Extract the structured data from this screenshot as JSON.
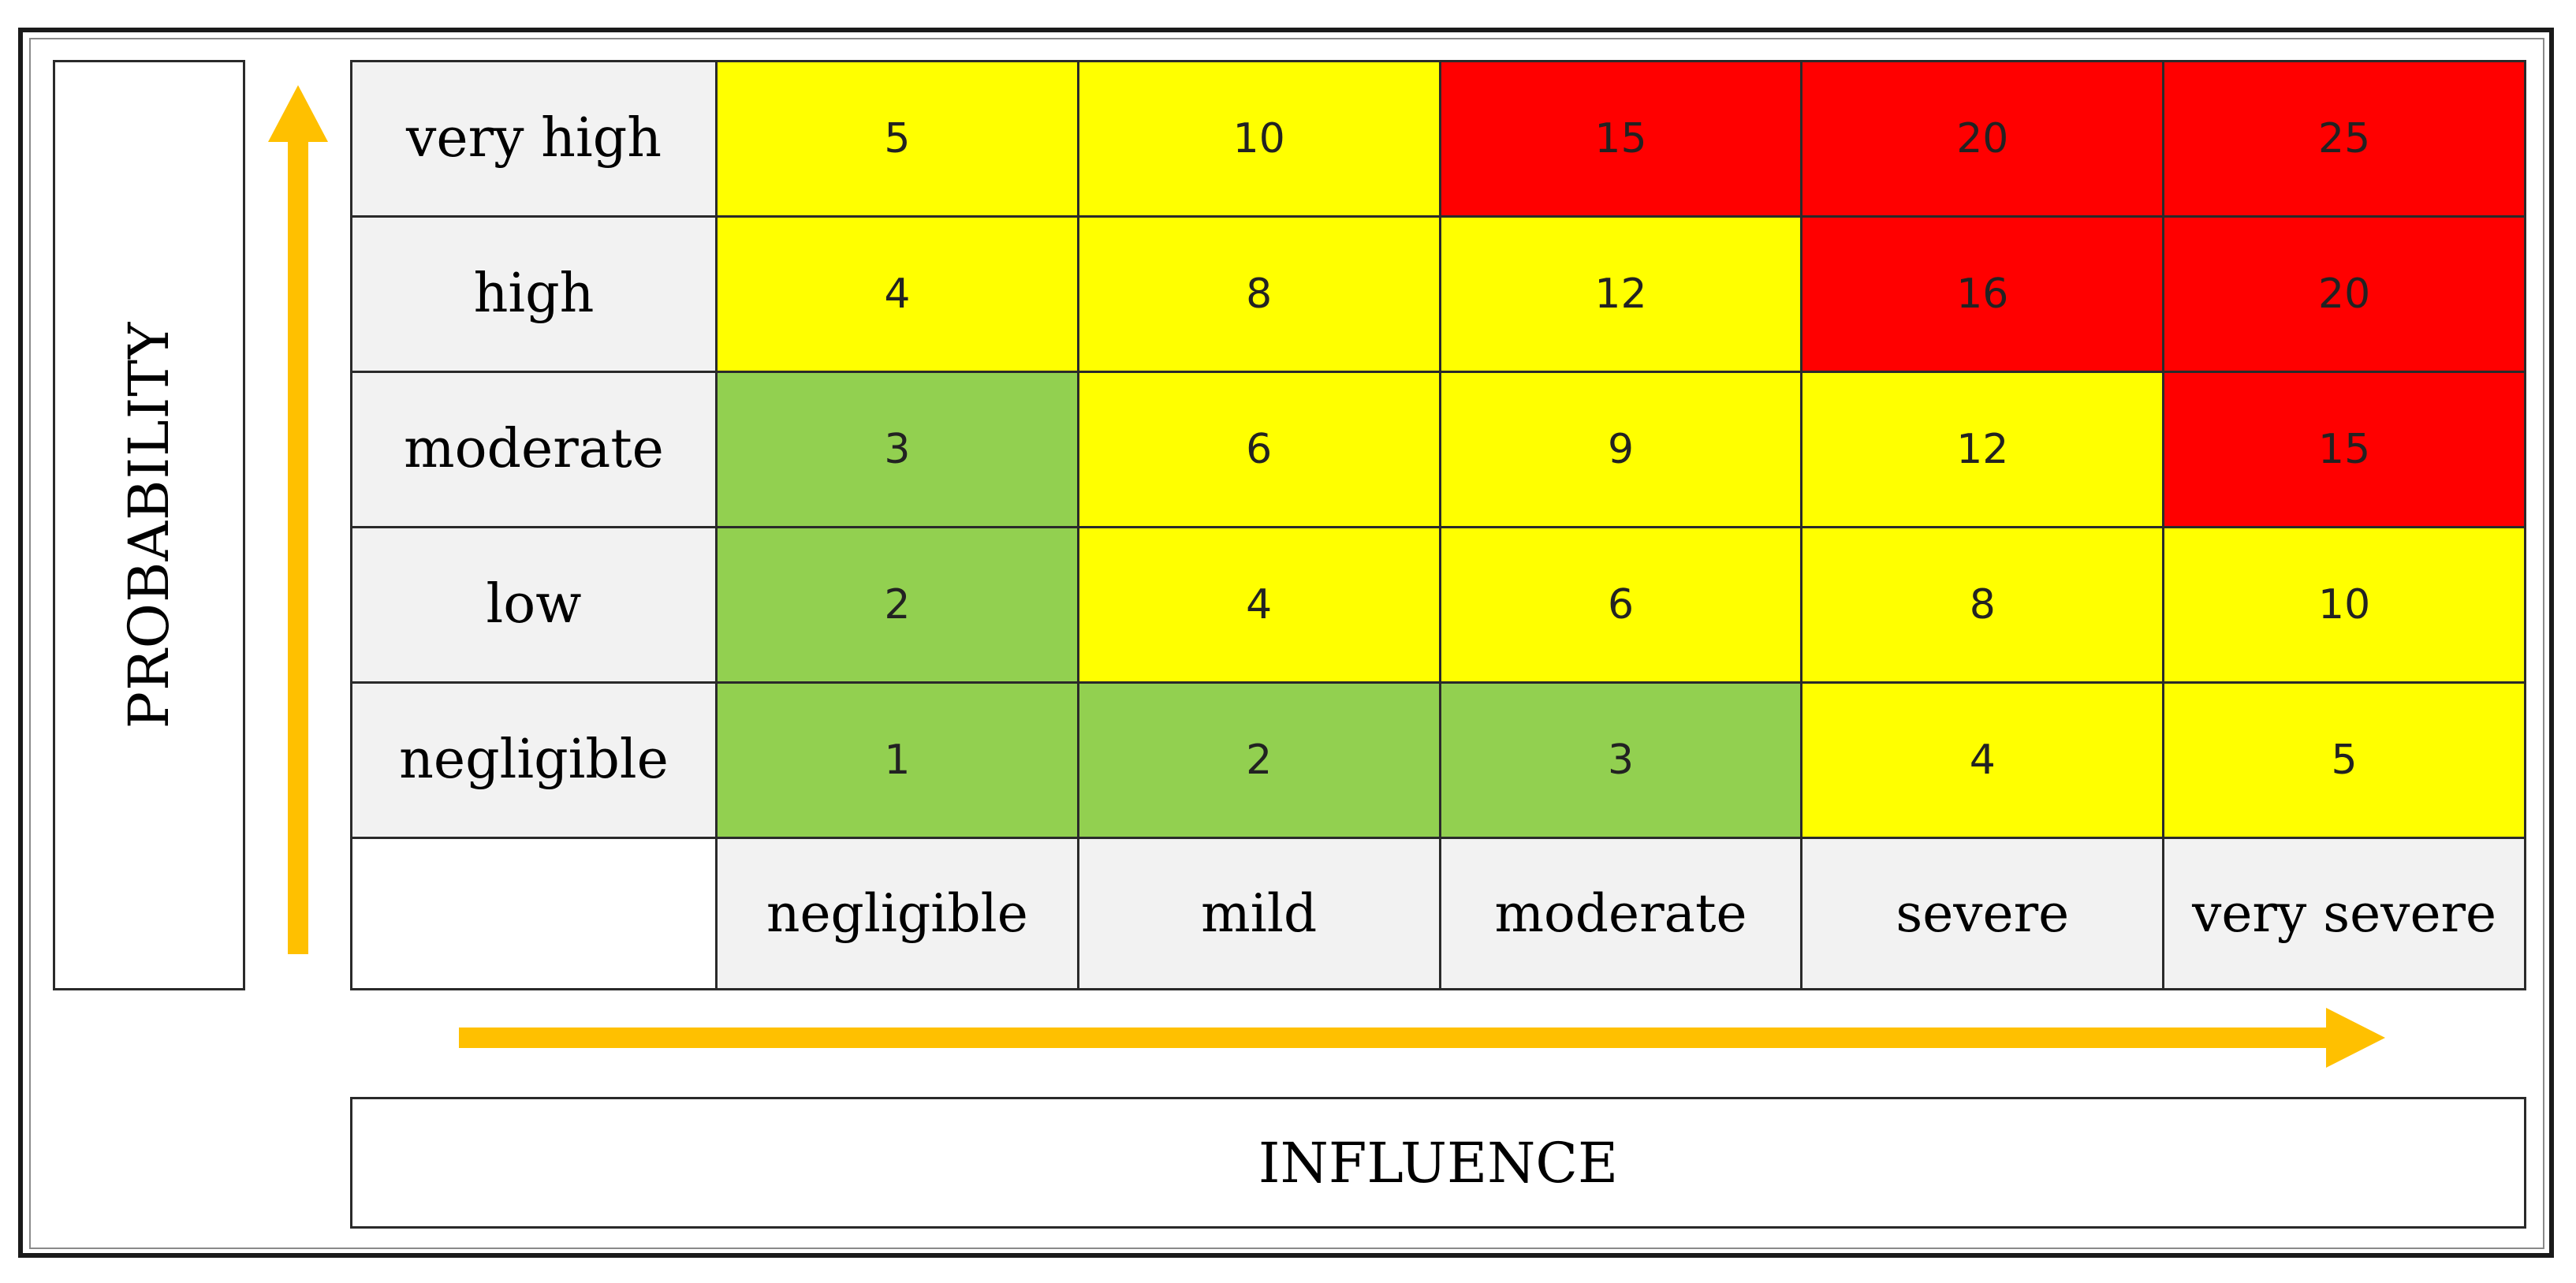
{
  "chart_data": {
    "type": "heatmap",
    "title": "",
    "ylabel": "PROBABILITY",
    "xlabel": "INFLUENCE",
    "y_categories": [
      "very high",
      "high",
      "moderate",
      "low",
      "negligible"
    ],
    "x_categories": [
      "negligible",
      "mild",
      "moderate",
      "severe",
      "very severe"
    ],
    "values": [
      [
        5,
        10,
        15,
        20,
        25
      ],
      [
        4,
        8,
        12,
        16,
        20
      ],
      [
        3,
        6,
        9,
        12,
        15
      ],
      [
        2,
        4,
        6,
        8,
        10
      ],
      [
        1,
        2,
        3,
        4,
        5
      ]
    ],
    "cell_levels": [
      [
        "yellow",
        "yellow",
        "red",
        "red",
        "red"
      ],
      [
        "yellow",
        "yellow",
        "yellow",
        "red",
        "red"
      ],
      [
        "green",
        "yellow",
        "yellow",
        "yellow",
        "red"
      ],
      [
        "green",
        "yellow",
        "yellow",
        "yellow",
        "yellow"
      ],
      [
        "green",
        "green",
        "green",
        "yellow",
        "yellow"
      ]
    ],
    "colors": {
      "green": "#92d050",
      "yellow": "#ffff00",
      "red": "#ff0000",
      "header": "#f2f2f2",
      "arrow": "#ffc000"
    }
  }
}
